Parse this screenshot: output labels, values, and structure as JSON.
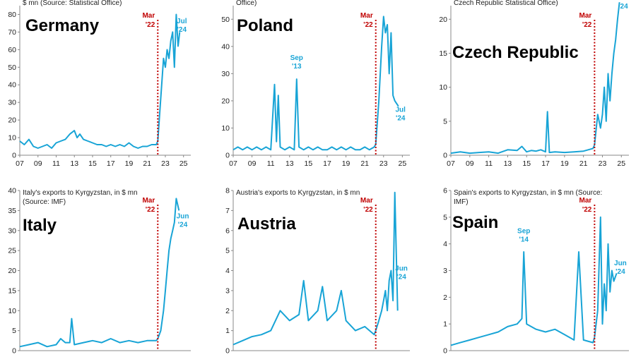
{
  "colors": {
    "series": "#18a4d6",
    "marker": "#c00000",
    "axis": "#888888"
  },
  "chart_data": [
    {
      "type": "line",
      "title": "Germany",
      "subtitle": "$ mn (Source: Statistical Office)",
      "x_ticks": [
        "07",
        "09",
        "11",
        "13",
        "15",
        "17",
        "19",
        "21",
        "23",
        "25"
      ],
      "xlim": [
        2007,
        2025.8
      ],
      "ylim": [
        0,
        85
      ],
      "y_ticks": [
        0,
        10,
        20,
        30,
        40,
        50,
        60,
        70,
        80
      ],
      "marker": {
        "x": 2022.17,
        "label_1": "Mar",
        "label_2": "'22"
      },
      "annotations": [
        {
          "x": 2024.5,
          "y": 75,
          "label_1": "Jul",
          "label_2": "'24"
        }
      ],
      "series": [
        {
          "x": [
            2007,
            2007.5,
            2008,
            2008.5,
            2009,
            2009.5,
            2010,
            2010.5,
            2011,
            2011.5,
            2012,
            2012.5,
            2013,
            2013.3,
            2013.6,
            2014,
            2014.5,
            2015,
            2015.5,
            2016,
            2016.5,
            2017,
            2017.5,
            2018,
            2018.5,
            2019,
            2019.5,
            2020,
            2020.5,
            2021,
            2021.5,
            2022,
            2022.17,
            2022.4,
            2022.6,
            2022.8,
            2023,
            2023.2,
            2023.4,
            2023.6,
            2023.8,
            2024,
            2024.2,
            2024.4,
            2024.58
          ],
          "y": [
            8,
            6,
            9,
            5,
            4,
            5,
            6,
            4,
            7,
            8,
            9,
            12,
            14,
            10,
            12,
            9,
            8,
            7,
            6,
            6,
            5,
            6,
            5,
            6,
            5,
            7,
            5,
            4,
            5,
            5,
            6,
            6,
            8,
            25,
            40,
            55,
            50,
            60,
            55,
            65,
            70,
            50,
            80,
            62,
            70
          ]
        }
      ]
    },
    {
      "type": "line",
      "title": "Poland",
      "subtitle": "Office)",
      "x_ticks": [
        "07",
        "09",
        "11",
        "13",
        "15",
        "17",
        "19",
        "21",
        "23",
        "25"
      ],
      "xlim": [
        2007,
        2025.8
      ],
      "ylim": [
        0,
        55
      ],
      "y_ticks": [
        0,
        10,
        20,
        30,
        40,
        50
      ],
      "marker": {
        "x": 2022.17,
        "label_1": "Mar",
        "label_2": "'22"
      },
      "annotations": [
        {
          "x": 2013.75,
          "y": 35,
          "label_1": "Sep",
          "label_2": "'13"
        },
        {
          "x": 2024.5,
          "y": 16,
          "label_1": "Jul",
          "label_2": "'24"
        }
      ],
      "series": [
        {
          "x": [
            2007,
            2007.5,
            2008,
            2008.5,
            2009,
            2009.5,
            2010,
            2010.5,
            2011,
            2011.4,
            2011.6,
            2011.8,
            2012,
            2012.5,
            2013,
            2013.5,
            2013.75,
            2014,
            2014.5,
            2015,
            2015.5,
            2016,
            2016.5,
            2017,
            2017.5,
            2018,
            2018.5,
            2019,
            2019.5,
            2020,
            2020.5,
            2021,
            2021.5,
            2022,
            2022.17,
            2022.5,
            2022.8,
            2023,
            2023.2,
            2023.4,
            2023.6,
            2023.8,
            2024,
            2024.2,
            2024.58
          ],
          "y": [
            2,
            3,
            2,
            3,
            2,
            3,
            2,
            3,
            2,
            26,
            5,
            22,
            3,
            2,
            3,
            2,
            28,
            3,
            2,
            3,
            2,
            3,
            2,
            2,
            3,
            2,
            3,
            2,
            3,
            2,
            2,
            3,
            2,
            3,
            4,
            20,
            40,
            51,
            45,
            48,
            30,
            45,
            22,
            20,
            18
          ]
        }
      ]
    },
    {
      "type": "line",
      "title": "Czech Republic",
      "subtitle": "Czech Republic Statistical Office)",
      "x_ticks": [
        "07",
        "09",
        "11",
        "13",
        "15",
        "17",
        "19",
        "21",
        "23",
        "25"
      ],
      "xlim": [
        2007,
        2025.8
      ],
      "ylim": [
        0,
        22
      ],
      "y_ticks": [
        0,
        5,
        10,
        15,
        20
      ],
      "marker": {
        "x": 2022.17,
        "label_1": "Mar",
        "label_2": "'22"
      },
      "annotations": [
        {
          "x": 2024.9,
          "y": 23.5,
          "label_1": "",
          "label_2": "'24"
        }
      ],
      "series": [
        {
          "x": [
            2007,
            2008,
            2009,
            2010,
            2011,
            2012,
            2013,
            2014,
            2014.5,
            2015,
            2015.5,
            2016,
            2016.5,
            2017,
            2017.2,
            2017.4,
            2018,
            2019,
            2020,
            2021,
            2021.5,
            2022,
            2022.17,
            2022.5,
            2022.8,
            2023,
            2023.2,
            2023.4,
            2023.6,
            2023.8,
            2024,
            2024.2,
            2024.4,
            2024.6,
            2024.8
          ],
          "y": [
            0.3,
            0.5,
            0.3,
            0.4,
            0.5,
            0.3,
            0.8,
            0.7,
            1.3,
            0.5,
            0.7,
            0.6,
            0.8,
            0.5,
            6.4,
            0.4,
            0.5,
            0.4,
            0.5,
            0.6,
            0.8,
            1,
            1.5,
            6,
            4,
            6,
            10,
            5,
            12,
            8,
            12,
            15,
            17,
            20,
            22.5
          ]
        }
      ]
    },
    {
      "type": "line",
      "title": "Italy",
      "subtitle": "Italy's exports to Kyrgyzstan, in $ mn (Source: IMF)",
      "x_ticks": [],
      "xlim": [
        2007,
        2025.8
      ],
      "ylim": [
        0,
        40
      ],
      "y_ticks": [
        0,
        5,
        10,
        15,
        20,
        25,
        30,
        35,
        40
      ],
      "marker": {
        "x": 2022.17,
        "label_1": "Mar",
        "label_2": "'22"
      },
      "annotations": [
        {
          "x": 2024.6,
          "y": 33,
          "label_1": "Jun",
          "label_2": "'24"
        }
      ],
      "series": [
        {
          "x": [
            2007,
            2008,
            2009,
            2010,
            2011,
            2011.5,
            2012,
            2012.5,
            2012.7,
            2013,
            2014,
            2015,
            2016,
            2017,
            2018,
            2019,
            2020,
            2021,
            2022,
            2022.17,
            2022.5,
            2022.8,
            2023,
            2023.2,
            2023.4,
            2023.6,
            2023.8,
            2024,
            2024.2,
            2024.5
          ],
          "y": [
            1,
            1.5,
            2,
            1,
            1.5,
            3,
            2,
            2,
            8,
            1.5,
            2,
            2.5,
            2,
            3,
            2,
            2.5,
            2,
            2.5,
            2.5,
            3,
            5,
            10,
            15,
            20,
            25,
            28,
            30,
            32,
            38,
            35
          ]
        }
      ]
    },
    {
      "type": "line",
      "title": "Austria",
      "subtitle": "Austria's exports to Kyrgyzstan, in $ mn (Source: IMF)",
      "x_ticks": [],
      "xlim": [
        2007,
        2025.8
      ],
      "ylim": [
        0,
        8
      ],
      "y_ticks": [
        0,
        1,
        2,
        3,
        4,
        5,
        6,
        7,
        8
      ],
      "marker": {
        "x": 2022.17,
        "label_1": "Mar",
        "label_2": "'22"
      },
      "annotations": [
        {
          "x": 2024.6,
          "y": 4,
          "label_1": "Jun",
          "label_2": "'24"
        }
      ],
      "series": [
        {
          "x": [
            2007,
            2008,
            2009,
            2010,
            2011,
            2012,
            2013,
            2014,
            2014.5,
            2015,
            2016,
            2016.5,
            2017,
            2018,
            2018.5,
            2019,
            2020,
            2021,
            2022,
            2022.17,
            2022.5,
            2022.8,
            2023,
            2023.2,
            2023.4,
            2023.6,
            2023.8,
            2024,
            2024.2,
            2024.5
          ],
          "y": [
            0.3,
            0.5,
            0.7,
            0.8,
            1,
            2,
            1.5,
            1.8,
            3.5,
            1.5,
            2,
            3.2,
            1.5,
            2,
            3,
            1.5,
            1,
            1.2,
            0.8,
            1,
            1.5,
            2,
            2.5,
            3,
            2,
            3.5,
            4,
            2.5,
            7.9,
            2
          ]
        }
      ]
    },
    {
      "type": "line",
      "title": "Spain",
      "subtitle": "Spain's exports to Kyrgyzstan, in $ mn (Source: IMF)",
      "x_ticks": [],
      "xlim": [
        2007,
        2025.8
      ],
      "ylim": [
        0,
        6
      ],
      "y_ticks": [
        0,
        1,
        2,
        3,
        4,
        5,
        6
      ],
      "marker": {
        "x": 2022.17,
        "label_1": "Mar",
        "label_2": "'22"
      },
      "annotations": [
        {
          "x": 2014.7,
          "y": 4.4,
          "label_1": "Sep",
          "label_2": "'14"
        },
        {
          "x": 2024.6,
          "y": 3.2,
          "label_1": "Jun",
          "label_2": "'24"
        }
      ],
      "series": [
        {
          "x": [
            2007,
            2008,
            2009,
            2010,
            2011,
            2012,
            2013,
            2014,
            2014.5,
            2014.7,
            2015,
            2016,
            2017,
            2018,
            2019,
            2020,
            2020.5,
            2021,
            2022,
            2022.17,
            2022.5,
            2022.8,
            2023,
            2023.2,
            2023.4,
            2023.6,
            2023.8,
            2024,
            2024.2,
            2024.5
          ],
          "y": [
            0.2,
            0.3,
            0.4,
            0.5,
            0.6,
            0.7,
            0.9,
            1,
            1.2,
            3.7,
            1,
            0.8,
            0.7,
            0.8,
            0.6,
            0.4,
            3.7,
            0.4,
            0.3,
            0.5,
            1.5,
            5,
            1,
            2.5,
            1.5,
            4,
            2.2,
            3,
            2.6,
            2.9
          ]
        }
      ]
    }
  ]
}
